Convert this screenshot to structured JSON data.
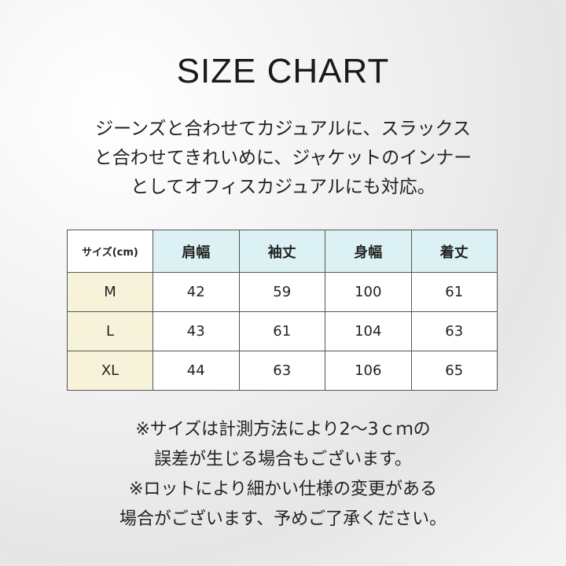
{
  "title": "SIZE CHART",
  "intro": [
    "ジーンズと合わせてカジュアルに、スラックス",
    "と合わせてきれいめに、ジャケットのインナー",
    "としてオフィスカジュアルにも対応。"
  ],
  "table": {
    "corner": "サイズ(cm)",
    "headers": [
      "肩幅",
      "袖丈",
      "身幅",
      "着丈"
    ],
    "rows": [
      {
        "size": "M",
        "values": [
          "42",
          "59",
          "100",
          "61"
        ]
      },
      {
        "size": "L",
        "values": [
          "43",
          "61",
          "104",
          "63"
        ]
      },
      {
        "size": "XL",
        "values": [
          "44",
          "63",
          "106",
          "65"
        ]
      }
    ]
  },
  "notes": [
    "※サイズは計測方法により2～3ｃｍの",
    "誤差が生じる場合もございます。",
    "※ロットにより細かい仕様の変更がある",
    "場合がございます、予めご了承ください。"
  ],
  "colors": {
    "header_bg": "#dcf1f3",
    "size_col_bg": "#f6f3da"
  }
}
